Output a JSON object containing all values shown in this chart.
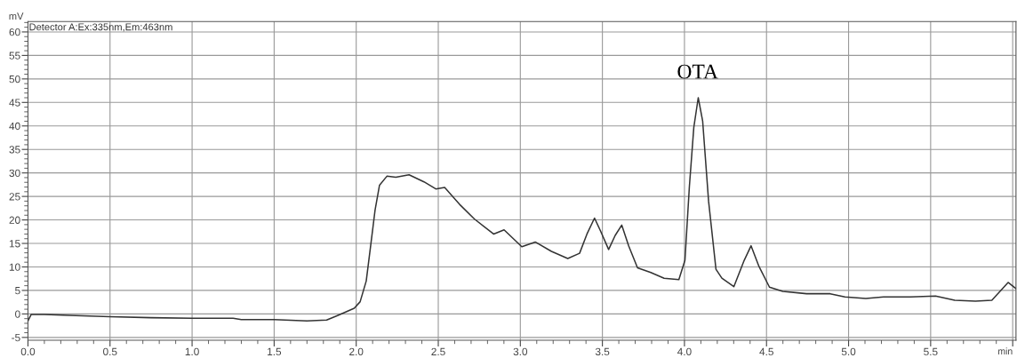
{
  "chart_data": {
    "type": "line",
    "xlabel": null,
    "ylabel": "mV",
    "annotations": [
      "Detector A:Ex:335nm,Em:463nm",
      {
        "text": "OTA",
        "x": 4.08,
        "y": 46.0
      }
    ],
    "x": [
      0.0,
      0.02,
      0.1,
      0.25,
      0.5,
      0.75,
      1.0,
      1.25,
      1.3,
      1.5,
      1.7,
      1.82,
      1.889,
      1.988,
      2.024,
      2.061,
      2.088,
      2.115,
      2.142,
      2.187,
      2.241,
      2.322,
      2.413,
      2.485,
      2.539,
      2.63,
      2.72,
      2.837,
      2.901,
      3.009,
      3.091,
      3.19,
      3.289,
      3.361,
      3.406,
      3.452,
      3.488,
      3.538,
      3.578,
      3.618,
      3.66,
      3.714,
      3.795,
      3.876,
      3.966,
      4.003,
      4.03,
      4.057,
      4.084,
      4.111,
      4.147,
      4.192,
      4.228,
      4.301,
      4.364,
      4.406,
      4.454,
      4.518,
      4.599,
      4.744,
      4.888,
      4.978,
      5.105,
      5.213,
      5.376,
      5.53,
      5.647,
      5.773,
      5.873,
      5.972,
      6.02
    ],
    "series": [
      {
        "color": "#333333",
        "values": [
          -1.5,
          -0.1,
          -0.1,
          -0.3,
          -0.6,
          -0.8,
          -0.9,
          -0.9,
          -1.2,
          -1.2,
          -1.5,
          -1.3,
          -0.3,
          1.2,
          2.6,
          7.0,
          14.5,
          22.1,
          27.4,
          29.3,
          29.1,
          29.6,
          28.1,
          26.6,
          26.9,
          23.3,
          20.2,
          17.0,
          17.9,
          14.3,
          15.3,
          13.3,
          11.8,
          12.9,
          17.0,
          20.4,
          17.7,
          13.7,
          16.7,
          18.9,
          14.5,
          9.8,
          8.8,
          7.6,
          7.3,
          11.4,
          27.1,
          39.7,
          46.0,
          41.0,
          24.0,
          9.5,
          7.6,
          5.8,
          11.4,
          14.5,
          10.1,
          5.7,
          4.8,
          4.3,
          4.3,
          3.6,
          3.3,
          3.6,
          3.6,
          3.8,
          2.9,
          2.7,
          2.9,
          6.7,
          5.4
        ]
      }
    ],
    "xlim": [
      0,
      6.02
    ],
    "ylim": [
      -5.6,
      62.2
    ],
    "xticks": [
      {
        "value": 0.0,
        "label": "0.0"
      },
      0.5,
      {
        "value": 1.0,
        "label": "1.0"
      },
      1.5,
      {
        "value": 2.0,
        "label": "2.0"
      },
      2.5,
      {
        "value": 3.0,
        "label": "3.0"
      },
      3.5,
      {
        "value": 4.0,
        "label": "4.0"
      },
      4.5,
      {
        "value": 5.0,
        "label": "5.0"
      },
      5.5,
      {
        "value": 6.0,
        "label": "min"
      }
    ],
    "yticks": [
      -5,
      0,
      5,
      10,
      15,
      20,
      25,
      30,
      35,
      40,
      45,
      50,
      55,
      60
    ],
    "grid": true,
    "legend": false,
    "marker": "none",
    "line_style": "solid"
  }
}
